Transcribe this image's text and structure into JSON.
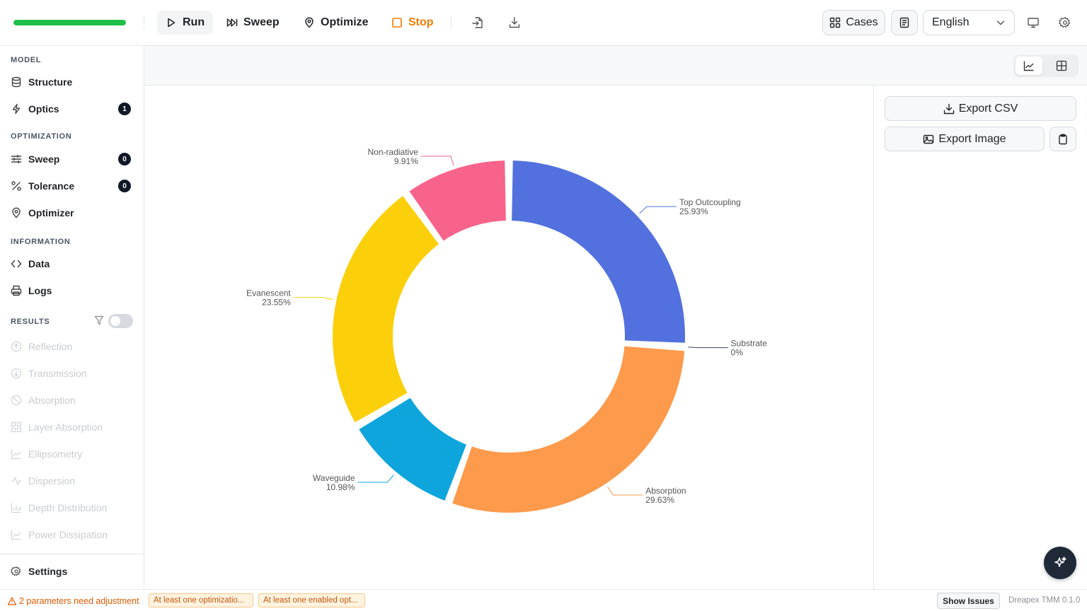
{
  "toolbar": {
    "progress": 1.0,
    "run": "Run",
    "sweep": "Sweep",
    "optimize": "Optimize",
    "stop": "Stop",
    "cases": "Cases",
    "language": "English"
  },
  "sidebar": {
    "sections": {
      "model": "MODEL",
      "optimization": "OPTIMIZATION",
      "information": "INFORMATION",
      "results": "RESULTS"
    },
    "model_items": [
      {
        "label": "Structure",
        "icon": "database-icon"
      },
      {
        "label": "Optics",
        "icon": "bolt-icon",
        "badge": "1"
      }
    ],
    "optimization_items": [
      {
        "label": "Sweep",
        "icon": "sliders-icon",
        "badge": "0"
      },
      {
        "label": "Tolerance",
        "icon": "percent-icon",
        "badge": "0"
      },
      {
        "label": "Optimizer",
        "icon": "pin-icon"
      }
    ],
    "information_items": [
      {
        "label": "Data",
        "icon": "code-icon"
      },
      {
        "label": "Logs",
        "icon": "printer-icon"
      }
    ],
    "results_items": [
      {
        "label": "Reflection",
        "icon": "arrow-up-circle-icon"
      },
      {
        "label": "Transmission",
        "icon": "arrow-down-circle-icon"
      },
      {
        "label": "Absorption",
        "icon": "ban-icon"
      },
      {
        "label": "Layer Absorption",
        "icon": "grid-icon"
      },
      {
        "label": "Ellipsometry",
        "icon": "line-chart-icon"
      },
      {
        "label": "Dispersion",
        "icon": "activity-icon"
      },
      {
        "label": "Depth Distribution",
        "icon": "bar-chart-icon"
      },
      {
        "label": "Power Dissipation",
        "icon": "line-chart-icon"
      }
    ],
    "results_filter_on": false,
    "settings": "Settings"
  },
  "panel": {
    "export_csv": "Export CSV",
    "export_image": "Export Image"
  },
  "status": {
    "warning": "2 parameters need adjustment",
    "chips": [
      "At least one optimizatio...",
      "At least one enabled opt..."
    ],
    "show_issues": "Show Issues",
    "version": "Dreapex TMM 0.1.0"
  },
  "chart_data": {
    "type": "pie",
    "donut": true,
    "slices": [
      {
        "label": "Top Outcoupling",
        "value": 25.93,
        "display": "25.93%",
        "color": "#5271de"
      },
      {
        "label": "Substrate",
        "value": 0,
        "display": "0%",
        "color": "#374151"
      },
      {
        "label": "Absorption",
        "value": 29.63,
        "display": "29.63%",
        "color": "#fd9a4b"
      },
      {
        "label": "Waveguide",
        "value": 10.98,
        "display": "10.98%",
        "color": "#0ea5dd"
      },
      {
        "label": "Evanescent",
        "value": 23.55,
        "display": "23.55%",
        "color": "#fbd00a"
      },
      {
        "label": "Non-radiative",
        "value": 9.91,
        "display": "9.91%",
        "color": "#f8638b"
      }
    ]
  }
}
